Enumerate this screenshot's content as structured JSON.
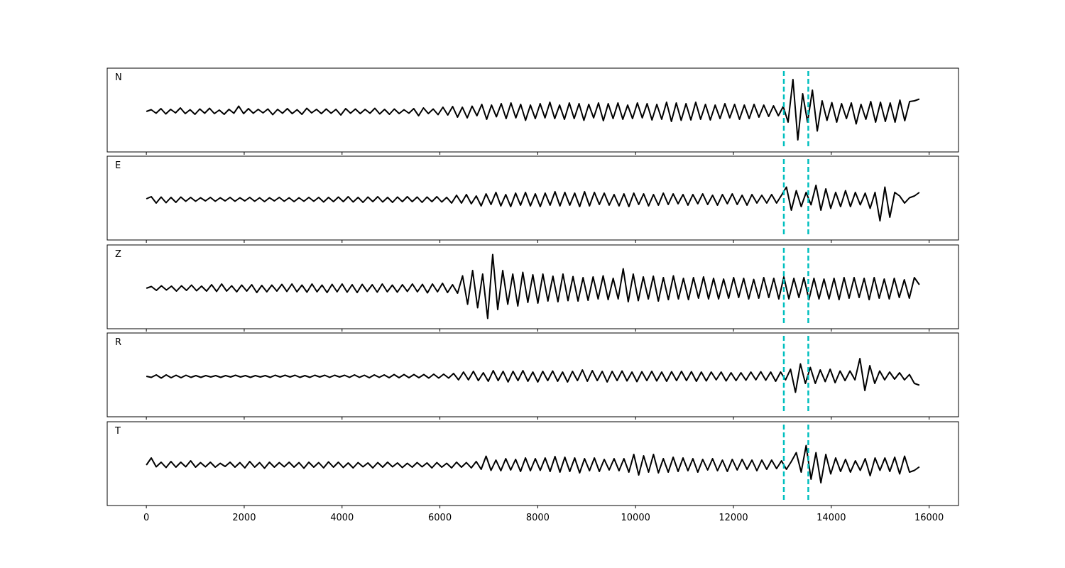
{
  "chart_data": {
    "type": "line",
    "title": "",
    "xlabel": "",
    "ylabel": "",
    "xlim": [
      -800,
      16600
    ],
    "xticks": [
      0,
      2000,
      4000,
      6000,
      8000,
      10000,
      12000,
      14000,
      16000
    ],
    "xtick_labels": [
      "0",
      "2000",
      "4000",
      "6000",
      "8000",
      "10000",
      "12000",
      "14000",
      "16000"
    ],
    "sample_step": 100,
    "x_start": 0,
    "x_end": 15800,
    "trace_color": "#000000",
    "marker_color": "#00bfbf",
    "markers": [
      13030,
      13530
    ],
    "grid": false,
    "panels": [
      {
        "label": "N",
        "values": [
          0.0,
          0.05,
          -0.05,
          0.08,
          -0.07,
          0.06,
          -0.04,
          0.1,
          -0.06,
          0.05,
          -0.08,
          0.07,
          -0.05,
          0.09,
          -0.06,
          0.04,
          -0.08,
          0.06,
          -0.05,
          0.15,
          -0.06,
          0.08,
          -0.05,
          0.06,
          -0.04,
          0.07,
          -0.09,
          0.06,
          -0.05,
          0.08,
          -0.06,
          0.05,
          -0.08,
          0.09,
          -0.04,
          0.06,
          -0.06,
          0.07,
          -0.05,
          0.06,
          -0.1,
          0.08,
          -0.05,
          0.07,
          -0.06,
          0.06,
          -0.05,
          0.09,
          -0.07,
          0.06,
          -0.08,
          0.07,
          -0.06,
          0.05,
          -0.05,
          0.08,
          -0.12,
          0.1,
          -0.06,
          0.07,
          -0.09,
          0.12,
          -0.1,
          0.14,
          -0.16,
          0.12,
          -0.18,
          0.15,
          -0.12,
          0.2,
          -0.22,
          0.18,
          -0.15,
          0.22,
          -0.2,
          0.24,
          -0.18,
          0.2,
          -0.25,
          0.18,
          -0.2,
          0.22,
          -0.18,
          0.26,
          -0.2,
          0.18,
          -0.22,
          0.24,
          -0.2,
          0.22,
          -0.25,
          0.2,
          -0.18,
          0.24,
          -0.26,
          0.22,
          -0.2,
          0.24,
          -0.22,
          0.18,
          -0.2,
          0.24,
          -0.18,
          0.22,
          -0.24,
          0.2,
          -0.22,
          0.26,
          -0.28,
          0.24,
          -0.25,
          0.22,
          -0.24,
          0.26,
          -0.22,
          0.2,
          -0.24,
          0.18,
          -0.2,
          0.22,
          -0.18,
          0.2,
          -0.22,
          0.18,
          -0.2,
          0.2,
          -0.16,
          0.18,
          -0.14,
          0.16,
          -0.12,
          0.14,
          -0.3,
          0.9,
          -0.8,
          0.5,
          -0.3,
          0.6,
          -0.55,
          0.3,
          -0.25,
          0.25,
          -0.3,
          0.22,
          -0.2,
          0.24,
          -0.35,
          0.2,
          -0.22,
          0.28,
          -0.3,
          0.26,
          -0.28,
          0.24,
          -0.3,
          0.32,
          -0.26,
          0.28,
          0.3,
          0.35
        ]
      },
      {
        "label": "E",
        "values": [
          0.02,
          0.08,
          -0.1,
          0.07,
          -0.09,
          0.06,
          -0.08,
          0.07,
          -0.05,
          0.06,
          -0.05,
          0.05,
          -0.04,
          0.06,
          -0.05,
          0.05,
          -0.04,
          0.06,
          -0.05,
          0.05,
          -0.04,
          0.06,
          -0.05,
          0.05,
          -0.06,
          0.05,
          -0.04,
          0.06,
          -0.05,
          0.05,
          -0.06,
          0.05,
          -0.05,
          0.06,
          -0.05,
          0.06,
          -0.07,
          0.06,
          -0.06,
          0.07,
          -0.06,
          0.08,
          -0.07,
          0.06,
          -0.08,
          0.07,
          -0.06,
          0.08,
          -0.07,
          0.06,
          -0.08,
          0.07,
          -0.06,
          0.08,
          -0.06,
          0.07,
          -0.08,
          0.07,
          -0.06,
          0.08,
          -0.07,
          0.06,
          -0.1,
          0.12,
          -0.1,
          0.14,
          -0.12,
          0.1,
          -0.18,
          0.16,
          -0.14,
          0.2,
          -0.18,
          0.14,
          -0.2,
          0.18,
          -0.16,
          0.2,
          -0.18,
          0.16,
          -0.2,
          0.18,
          -0.16,
          0.22,
          -0.18,
          0.2,
          -0.16,
          0.18,
          -0.2,
          0.22,
          -0.18,
          0.2,
          -0.14,
          0.18,
          -0.16,
          0.14,
          -0.18,
          0.16,
          -0.2,
          0.18,
          -0.14,
          0.16,
          -0.18,
          0.14,
          -0.16,
          0.18,
          -0.14,
          0.16,
          -0.12,
          0.14,
          -0.16,
          0.14,
          -0.12,
          0.16,
          -0.14,
          0.12,
          -0.16,
          0.14,
          -0.12,
          0.16,
          -0.14,
          0.12,
          -0.16,
          0.14,
          -0.1,
          0.12,
          -0.1,
          0.14,
          -0.1,
          0.12,
          0.35,
          -0.3,
          0.25,
          -0.2,
          0.2,
          -0.15,
          0.4,
          -0.3,
          0.3,
          -0.25,
          0.2,
          -0.2,
          0.25,
          -0.2,
          0.2,
          -0.15,
          0.18,
          -0.25,
          0.2,
          -0.6,
          0.35,
          -0.5,
          0.2,
          0.1,
          -0.1,
          0.05,
          0.1,
          0.2
        ]
      },
      {
        "label": "Z",
        "values": [
          0.0,
          0.05,
          -0.06,
          0.07,
          -0.05,
          0.06,
          -0.08,
          0.07,
          -0.06,
          0.09,
          -0.07,
          0.06,
          -0.08,
          0.1,
          -0.09,
          0.12,
          -0.08,
          0.07,
          -0.1,
          0.09,
          -0.08,
          0.1,
          -0.12,
          0.08,
          -0.1,
          0.09,
          -0.08,
          0.11,
          -0.09,
          0.12,
          -0.1,
          0.09,
          -0.11,
          0.12,
          -0.1,
          0.09,
          -0.12,
          0.11,
          -0.1,
          0.12,
          -0.11,
          0.1,
          -0.12,
          0.11,
          -0.09,
          0.1,
          -0.11,
          0.12,
          -0.1,
          0.09,
          -0.11,
          0.1,
          -0.09,
          0.12,
          -0.1,
          0.11,
          -0.13,
          0.12,
          -0.1,
          0.14,
          -0.12,
          0.1,
          -0.14,
          0.35,
          -0.45,
          0.5,
          -0.55,
          0.4,
          -0.85,
          0.95,
          -0.6,
          0.5,
          -0.45,
          0.4,
          -0.5,
          0.45,
          -0.4,
          0.38,
          -0.42,
          0.4,
          -0.36,
          0.34,
          -0.38,
          0.4,
          -0.35,
          0.33,
          -0.36,
          0.3,
          -0.34,
          0.32,
          -0.3,
          0.35,
          -0.32,
          0.28,
          -0.3,
          0.55,
          -0.38,
          0.4,
          -0.35,
          0.32,
          -0.3,
          0.34,
          -0.36,
          0.3,
          -0.32,
          0.35,
          -0.3,
          0.28,
          -0.32,
          0.3,
          -0.28,
          0.32,
          -0.3,
          0.28,
          -0.3,
          0.26,
          -0.28,
          0.3,
          -0.26,
          0.28,
          -0.3,
          0.25,
          -0.28,
          0.3,
          -0.26,
          0.28,
          -0.3,
          0.32,
          -0.3,
          0.28,
          -0.26,
          0.3,
          -0.32,
          0.28,
          -0.3,
          0.26,
          -0.3,
          0.28,
          -0.32,
          0.3,
          -0.28,
          0.3,
          -0.26,
          0.28,
          -0.32,
          0.3,
          -0.28,
          0.26,
          -0.3,
          0.28,
          -0.26,
          0.24,
          -0.28,
          0.3,
          0.1
        ]
      },
      {
        "label": "R",
        "values": [
          0.0,
          -0.03,
          0.04,
          -0.05,
          0.04,
          -0.04,
          0.03,
          -0.04,
          0.03,
          -0.03,
          0.02,
          -0.03,
          0.02,
          -0.02,
          0.02,
          -0.03,
          0.02,
          -0.02,
          0.03,
          -0.02,
          0.02,
          -0.03,
          0.02,
          -0.02,
          0.02,
          -0.03,
          0.03,
          -0.02,
          0.03,
          -0.02,
          0.03,
          -0.03,
          0.02,
          -0.03,
          0.03,
          -0.02,
          0.03,
          -0.03,
          0.03,
          -0.02,
          0.03,
          -0.03,
          0.04,
          -0.03,
          0.03,
          -0.04,
          0.04,
          -0.03,
          0.04,
          -0.04,
          0.05,
          -0.04,
          0.05,
          -0.04,
          0.05,
          -0.04,
          0.05,
          -0.05,
          0.06,
          -0.05,
          0.06,
          -0.05,
          0.08,
          -0.1,
          0.12,
          -0.1,
          0.14,
          -0.12,
          0.1,
          -0.14,
          0.16,
          -0.12,
          0.14,
          -0.16,
          0.14,
          -0.12,
          0.16,
          -0.14,
          0.12,
          -0.16,
          0.14,
          -0.12,
          0.15,
          -0.14,
          0.12,
          -0.16,
          0.14,
          -0.12,
          0.18,
          -0.14,
          0.16,
          -0.12,
          0.14,
          -0.16,
          0.14,
          -0.12,
          0.15,
          -0.13,
          0.12,
          -0.15,
          0.13,
          -0.12,
          0.14,
          -0.13,
          0.12,
          -0.14,
          0.13,
          -0.12,
          0.14,
          -0.12,
          0.13,
          -0.14,
          0.12,
          -0.13,
          0.12,
          -0.1,
          0.12,
          -0.13,
          0.1,
          -0.12,
          0.1,
          -0.11,
          0.12,
          -0.1,
          0.13,
          -0.11,
          0.12,
          -0.14,
          0.12,
          -0.1,
          0.2,
          -0.45,
          0.35,
          -0.2,
          0.25,
          -0.2,
          0.18,
          -0.15,
          0.2,
          -0.18,
          0.15,
          -0.12,
          0.15,
          -0.1,
          0.5,
          -0.4,
          0.3,
          -0.2,
          0.15,
          -0.1,
          0.12,
          -0.08,
          0.1,
          -0.1,
          0.05,
          -0.2,
          -0.25
        ]
      },
      {
        "label": "T",
        "values": [
          0.0,
          0.2,
          -0.05,
          0.08,
          -0.07,
          0.1,
          -0.06,
          0.08,
          -0.05,
          0.12,
          -0.06,
          0.07,
          -0.05,
          0.08,
          -0.06,
          0.05,
          -0.04,
          0.08,
          -0.06,
          0.07,
          -0.08,
          0.1,
          -0.06,
          0.07,
          -0.09,
          0.08,
          -0.06,
          0.07,
          -0.05,
          0.08,
          -0.06,
          0.07,
          -0.09,
          0.08,
          -0.06,
          0.07,
          -0.08,
          0.09,
          -0.06,
          0.08,
          -0.07,
          0.06,
          -0.08,
          0.07,
          -0.05,
          0.06,
          -0.08,
          0.07,
          -0.06,
          0.08,
          -0.05,
          0.06,
          -0.07,
          0.05,
          -0.06,
          0.07,
          -0.05,
          0.06,
          -0.08,
          0.07,
          -0.06,
          0.05,
          -0.08,
          0.08,
          -0.06,
          0.07,
          -0.08,
          0.1,
          -0.12,
          0.25,
          -0.15,
          0.14,
          -0.16,
          0.18,
          -0.14,
          0.16,
          -0.18,
          0.2,
          -0.16,
          0.18,
          -0.15,
          0.2,
          -0.18,
          0.24,
          -0.2,
          0.22,
          -0.18,
          0.2,
          -0.22,
          0.18,
          -0.16,
          0.2,
          -0.18,
          0.16,
          -0.14,
          0.18,
          -0.16,
          0.18,
          -0.2,
          0.3,
          -0.28,
          0.26,
          -0.2,
          0.3,
          -0.22,
          0.18,
          -0.2,
          0.22,
          -0.18,
          0.2,
          -0.16,
          0.18,
          -0.2,
          0.16,
          -0.14,
          0.18,
          -0.16,
          0.14,
          -0.18,
          0.16,
          -0.14,
          0.16,
          -0.12,
          0.14,
          -0.16,
          0.14,
          -0.12,
          0.14,
          -0.1,
          0.12,
          -0.12,
          0.1,
          0.35,
          -0.2,
          0.55,
          -0.4,
          0.35,
          -0.5,
          0.3,
          -0.25,
          0.2,
          -0.18,
          0.16,
          -0.2,
          0.12,
          -0.15,
          0.18,
          -0.3,
          0.2,
          -0.15,
          0.2,
          -0.18,
          0.22,
          -0.25,
          0.25,
          -0.2,
          -0.15,
          -0.05
        ]
      }
    ]
  }
}
